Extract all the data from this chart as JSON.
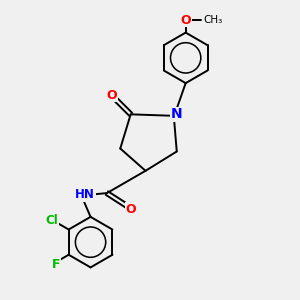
{
  "background_color": "#f0f0f0",
  "bond_color": "#000000",
  "atom_colors": {
    "N": "#0000ff",
    "O": "#ff0000",
    "Cl": "#00bb00",
    "F": "#00bb00",
    "C": "#000000",
    "H": "#555555"
  },
  "figsize": [
    3.0,
    3.0
  ],
  "dpi": 100
}
